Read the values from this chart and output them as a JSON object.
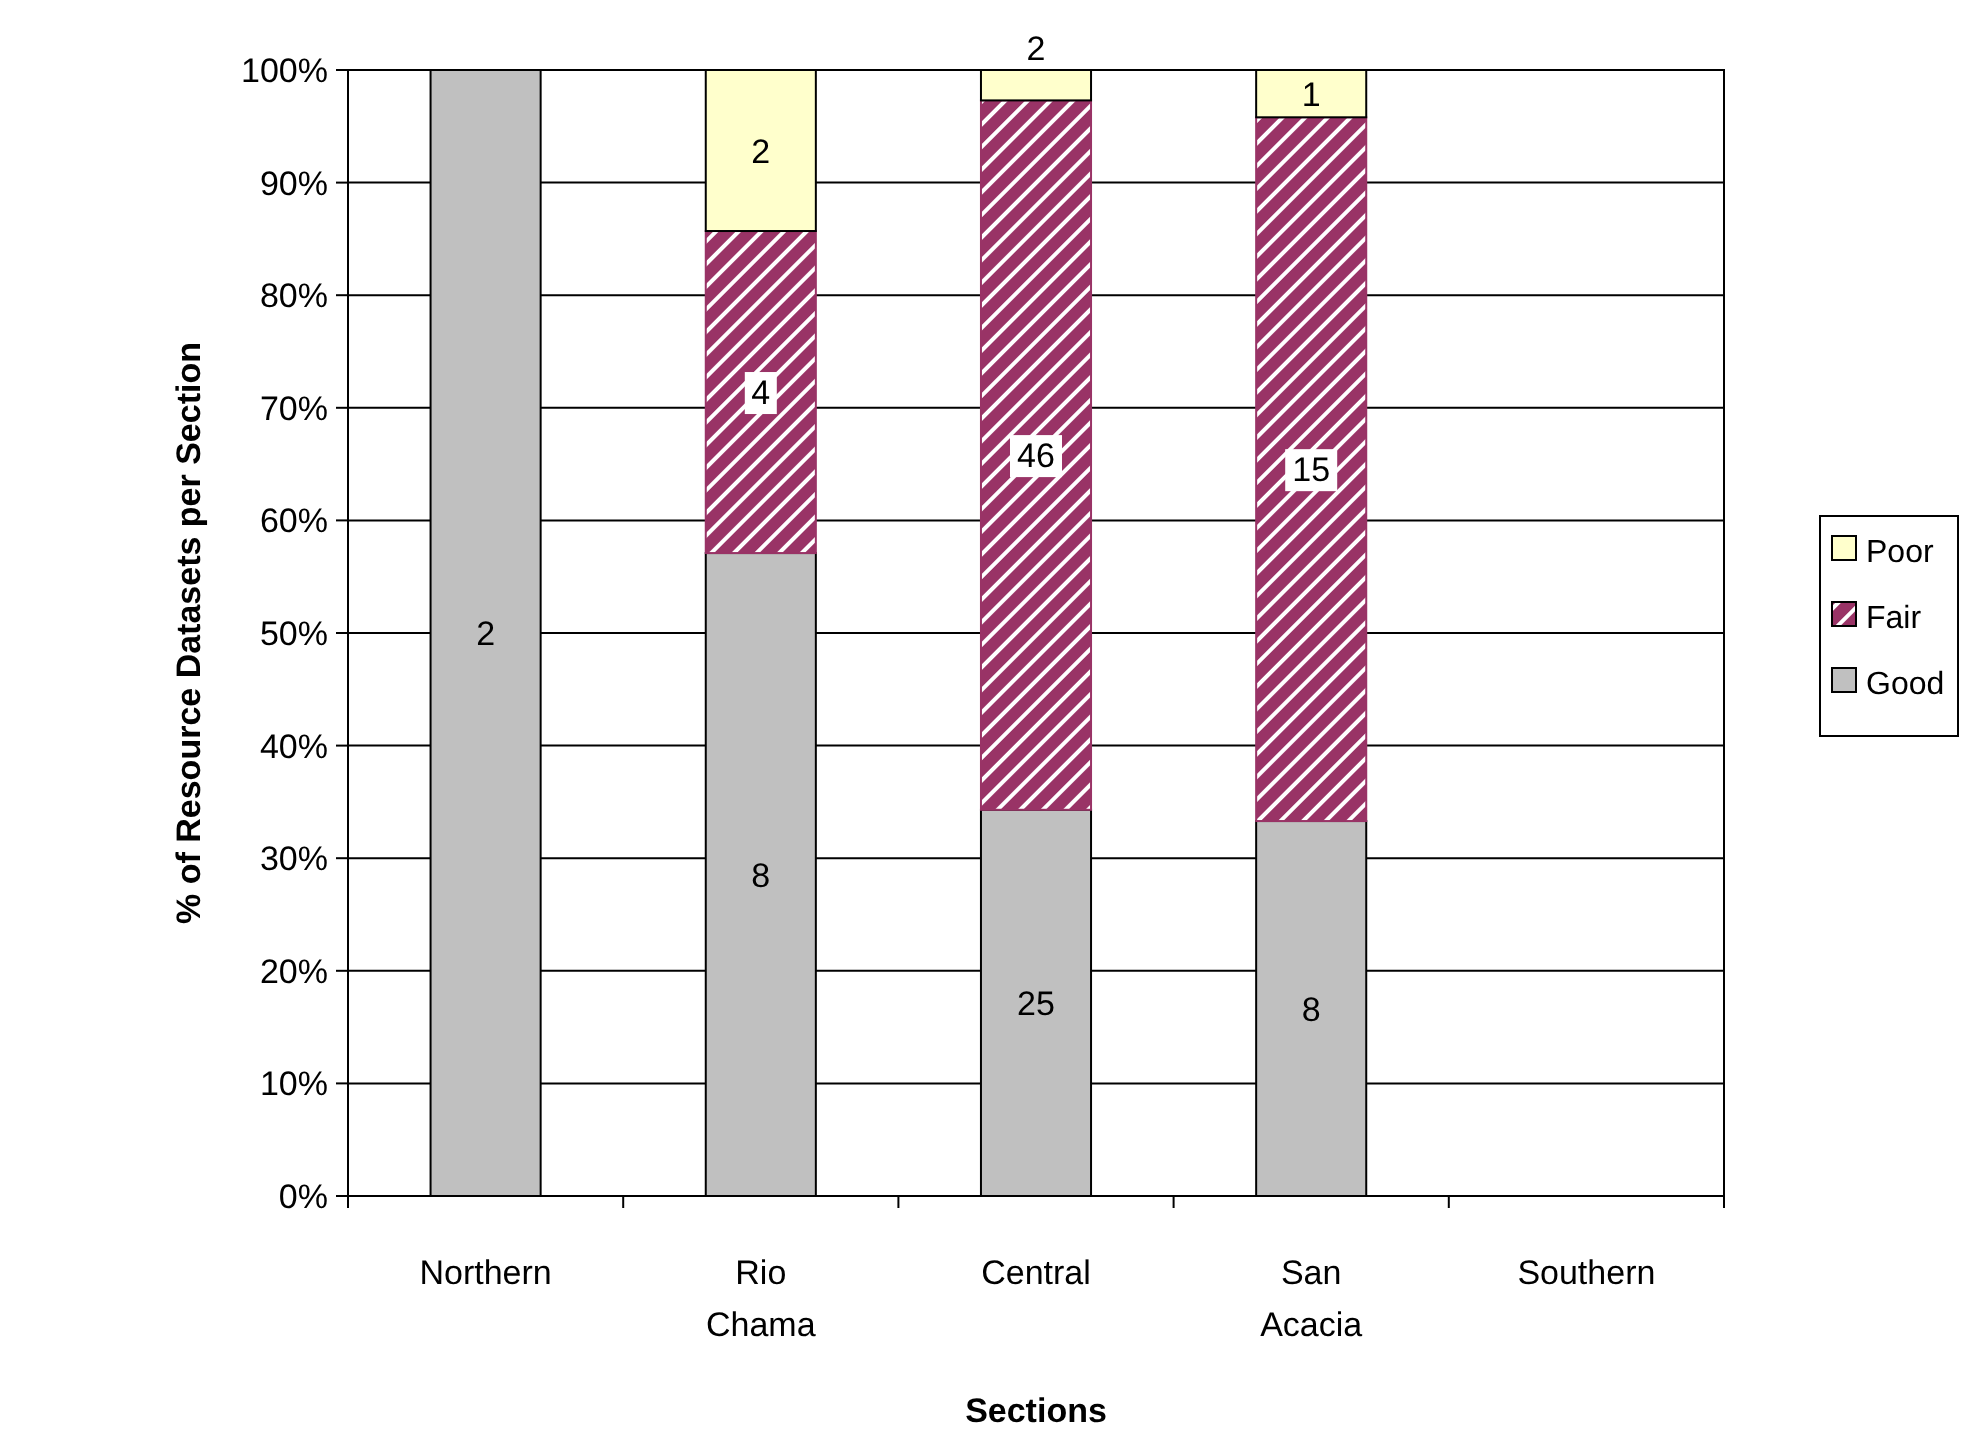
{
  "chart_data": {
    "type": "bar",
    "stacked": true,
    "xlabel": "Sections",
    "ylabel": "% of Resource Datasets per Section",
    "categories": [
      "Northern",
      "Rio Chama",
      "Central",
      "San Acacia",
      "Southern"
    ],
    "series": [
      {
        "name": "Good",
        "color": "#c0c0c0",
        "values": [
          100,
          57.1,
          34.3,
          33.3,
          null
        ]
      },
      {
        "name": "Fair",
        "color": "#993366",
        "values": [
          null,
          28.6,
          63.0,
          62.5,
          null
        ]
      },
      {
        "name": "Poor",
        "color": "#ffffcc",
        "values": [
          null,
          14.3,
          2.7,
          4.2,
          null
        ]
      }
    ],
    "annotations": [
      "2",
      "8",
      "25",
      "8",
      "4",
      "46",
      "15",
      "2",
      "2",
      "1"
    ],
    "ylim": [
      0,
      100
    ],
    "yticks": [
      {
        "value": 0,
        "label": "0%"
      },
      {
        "value": 10,
        "label": "10%"
      },
      {
        "value": 20,
        "label": "20%"
      },
      {
        "value": 30,
        "label": "30%"
      },
      {
        "value": 40,
        "label": "40%"
      },
      {
        "value": 50,
        "label": "50%"
      },
      {
        "value": 60,
        "label": "60%"
      },
      {
        "value": 70,
        "label": "70%"
      },
      {
        "value": 80,
        "label": "80%"
      },
      {
        "value": 90,
        "label": "90%"
      },
      {
        "value": 100,
        "label": "100%"
      }
    ],
    "grid": "y",
    "legend": "right"
  }
}
